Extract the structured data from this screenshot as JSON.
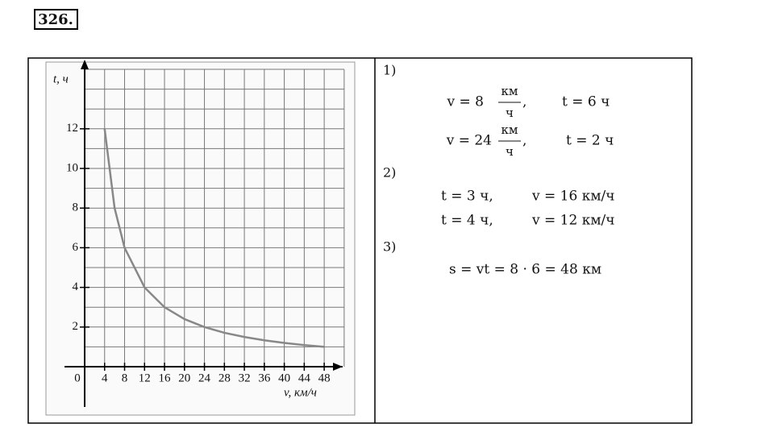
{
  "header": {
    "number": "326."
  },
  "chart_data": {
    "type": "line",
    "x": [
      4,
      6,
      8,
      12,
      16,
      20,
      24,
      28,
      32,
      36,
      40,
      44,
      48
    ],
    "values": [
      12,
      8,
      6,
      4,
      3,
      2.4,
      2,
      1.71,
      1.5,
      1.33,
      1.2,
      1.09,
      1
    ],
    "color": "#888888",
    "xlabel": "v, км/ч",
    "ylabel": "t, ч",
    "xlim": [
      0,
      52
    ],
    "ylim": [
      0,
      15
    ],
    "xticks": [
      0,
      4,
      8,
      12,
      16,
      20,
      24,
      28,
      32,
      36,
      40,
      44,
      48
    ],
    "yticks": [
      2,
      4,
      6,
      8,
      10,
      12
    ],
    "xgrid": [
      4,
      8,
      12,
      16,
      20,
      24,
      28,
      32,
      36,
      40,
      44,
      48,
      52
    ],
    "ygrid": [
      1,
      2,
      3,
      4,
      5,
      6,
      7,
      8,
      9,
      10,
      11,
      12,
      13,
      14,
      15
    ],
    "grid": true
  },
  "solution": {
    "p1": {
      "number": "1)",
      "a": {
        "left": "v = 8",
        "num": "км",
        "den": "ч",
        "tail": ",",
        "right": "t = 6 ч"
      },
      "b": {
        "left": "v = 24",
        "num": "км",
        "den": "ч",
        "tail": ",",
        "right": "t = 2 ч"
      }
    },
    "p2": {
      "number": "2)",
      "a": {
        "left": "t = 3 ч,",
        "right": "v = 16 км/ч"
      },
      "b": {
        "left": "t = 4 ч,",
        "right": "v = 12 км/ч"
      }
    },
    "p3": {
      "number": "3)",
      "line": "s = vt = 8 · 6 = 48 км"
    }
  }
}
